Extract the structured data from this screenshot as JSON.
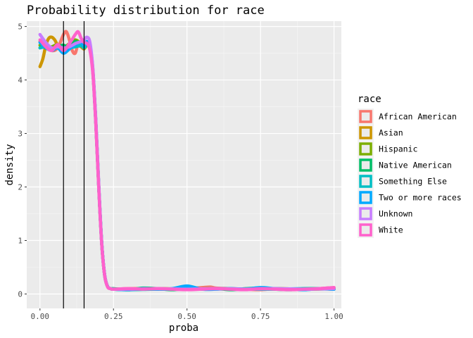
{
  "chart_data": {
    "type": "line",
    "title": "Probability distribution for race",
    "xlabel": "proba",
    "ylabel": "density",
    "xlim": [
      -0.045,
      1.025
    ],
    "ylim": [
      -0.27,
      5.1
    ],
    "x_ticks": [
      0.0,
      0.25,
      0.5,
      0.75,
      1.0
    ],
    "x_tick_labels": [
      "0.00",
      "0.25",
      "0.50",
      "0.75",
      "1.00"
    ],
    "y_ticks": [
      0,
      1,
      2,
      3,
      4,
      5
    ],
    "y_tick_labels": [
      "0",
      "1",
      "2",
      "3",
      "4",
      "5"
    ],
    "vlines": [
      0.08,
      0.15
    ],
    "grid": true,
    "legend": {
      "title": "race",
      "position": "right"
    },
    "series": [
      {
        "name": "African American",
        "color": "#F8766D",
        "x": [
          0.0,
          0.02,
          0.04,
          0.06,
          0.08,
          0.09,
          0.1,
          0.11,
          0.12,
          0.13,
          0.14,
          0.15,
          0.16,
          0.17,
          0.18,
          0.19,
          0.2,
          0.21,
          0.22,
          0.23,
          0.24,
          0.25,
          0.3,
          0.35,
          0.4,
          0.45,
          0.5,
          0.55,
          0.58,
          0.6,
          0.65,
          0.7,
          0.75,
          0.8,
          0.85,
          0.9,
          0.95,
          1.0
        ],
        "y": [
          4.72,
          4.65,
          4.55,
          4.6,
          4.85,
          4.9,
          4.75,
          4.55,
          4.5,
          4.68,
          4.62,
          4.6,
          4.68,
          4.62,
          4.2,
          3.2,
          2.0,
          0.95,
          0.35,
          0.14,
          0.1,
          0.09,
          0.1,
          0.1,
          0.09,
          0.09,
          0.1,
          0.12,
          0.13,
          0.11,
          0.1,
          0.09,
          0.08,
          0.1,
          0.09,
          0.09,
          0.1,
          0.12
        ]
      },
      {
        "name": "Asian",
        "color": "#CD9600",
        "x": [
          0.0,
          0.01,
          0.02,
          0.03,
          0.04,
          0.05,
          0.06,
          0.07,
          0.08,
          0.1,
          0.12,
          0.14,
          0.15,
          0.16,
          0.17,
          0.18,
          0.19,
          0.2,
          0.21,
          0.22,
          0.23,
          0.24,
          0.25,
          0.3,
          0.4,
          0.5,
          0.6,
          0.7,
          0.8,
          0.9,
          1.0
        ],
        "y": [
          4.25,
          4.4,
          4.65,
          4.78,
          4.8,
          4.75,
          4.65,
          4.62,
          4.6,
          4.62,
          4.68,
          4.62,
          4.58,
          4.65,
          4.58,
          4.15,
          3.2,
          2.0,
          0.95,
          0.35,
          0.14,
          0.1,
          0.09,
          0.08,
          0.1,
          0.09,
          0.1,
          0.09,
          0.1,
          0.09,
          0.1
        ]
      },
      {
        "name": "Hispanic",
        "color": "#7CAE00",
        "x": [
          0.0,
          0.02,
          0.04,
          0.06,
          0.08,
          0.1,
          0.12,
          0.14,
          0.15,
          0.16,
          0.17,
          0.18,
          0.19,
          0.2,
          0.21,
          0.22,
          0.23,
          0.24,
          0.25,
          0.3,
          0.4,
          0.5,
          0.6,
          0.7,
          0.8,
          0.9,
          1.0
        ],
        "y": [
          4.65,
          4.6,
          4.62,
          4.66,
          4.6,
          4.68,
          4.75,
          4.68,
          4.6,
          4.66,
          4.6,
          4.15,
          3.2,
          2.0,
          0.95,
          0.35,
          0.14,
          0.1,
          0.09,
          0.09,
          0.1,
          0.09,
          0.1,
          0.09,
          0.1,
          0.09,
          0.1
        ]
      },
      {
        "name": "Native American",
        "color": "#00BE67",
        "x": [
          0.0,
          0.02,
          0.04,
          0.06,
          0.08,
          0.1,
          0.12,
          0.14,
          0.15,
          0.16,
          0.17,
          0.18,
          0.19,
          0.2,
          0.21,
          0.22,
          0.23,
          0.24,
          0.25,
          0.3,
          0.35,
          0.4,
          0.45,
          0.5,
          0.55,
          0.6,
          0.65,
          0.7,
          0.75,
          0.8,
          0.85,
          0.9,
          0.95,
          1.0
        ],
        "y": [
          4.6,
          4.65,
          4.6,
          4.62,
          4.65,
          4.6,
          4.72,
          4.65,
          4.6,
          4.66,
          4.6,
          4.15,
          3.2,
          2.0,
          0.95,
          0.35,
          0.14,
          0.1,
          0.1,
          0.08,
          0.11,
          0.1,
          0.08,
          0.1,
          0.09,
          0.1,
          0.08,
          0.1,
          0.11,
          0.09,
          0.08,
          0.1,
          0.1,
          0.09
        ]
      },
      {
        "name": "Something Else",
        "color": "#00BFC4",
        "x": [
          0.0,
          0.02,
          0.04,
          0.06,
          0.08,
          0.1,
          0.12,
          0.14,
          0.15,
          0.16,
          0.17,
          0.18,
          0.19,
          0.2,
          0.21,
          0.22,
          0.23,
          0.24,
          0.25,
          0.3,
          0.4,
          0.5,
          0.6,
          0.7,
          0.8,
          0.9,
          1.0
        ],
        "y": [
          4.6,
          4.62,
          4.58,
          4.6,
          4.58,
          4.6,
          4.62,
          4.64,
          4.6,
          4.66,
          4.6,
          4.15,
          3.2,
          2.0,
          0.95,
          0.35,
          0.14,
          0.1,
          0.09,
          0.08,
          0.09,
          0.09,
          0.1,
          0.09,
          0.09,
          0.1,
          0.09
        ]
      },
      {
        "name": "Two or more races",
        "color": "#00A9FF",
        "x": [
          0.0,
          0.02,
          0.04,
          0.06,
          0.08,
          0.1,
          0.12,
          0.14,
          0.15,
          0.16,
          0.17,
          0.18,
          0.19,
          0.2,
          0.21,
          0.22,
          0.23,
          0.24,
          0.25,
          0.3,
          0.35,
          0.4,
          0.45,
          0.5,
          0.55,
          0.6,
          0.65,
          0.7,
          0.75,
          0.8,
          0.85,
          0.9,
          0.95,
          1.0
        ],
        "y": [
          4.7,
          4.6,
          4.55,
          4.6,
          4.5,
          4.58,
          4.66,
          4.7,
          4.65,
          4.72,
          4.62,
          4.15,
          3.2,
          2.0,
          0.95,
          0.35,
          0.14,
          0.1,
          0.09,
          0.08,
          0.1,
          0.09,
          0.1,
          0.15,
          0.09,
          0.09,
          0.1,
          0.09,
          0.12,
          0.1,
          0.09,
          0.08,
          0.1,
          0.09
        ]
      },
      {
        "name": "Unknown",
        "color": "#C77CFF",
        "x": [
          0.0,
          0.02,
          0.04,
          0.06,
          0.08,
          0.1,
          0.12,
          0.14,
          0.15,
          0.16,
          0.17,
          0.18,
          0.19,
          0.2,
          0.21,
          0.22,
          0.23,
          0.24,
          0.25,
          0.3,
          0.4,
          0.5,
          0.6,
          0.7,
          0.8,
          0.9,
          1.0
        ],
        "y": [
          4.85,
          4.7,
          4.6,
          4.62,
          4.6,
          4.62,
          4.68,
          4.72,
          4.75,
          4.8,
          4.7,
          4.2,
          3.25,
          2.05,
          0.97,
          0.36,
          0.14,
          0.1,
          0.09,
          0.09,
          0.1,
          0.09,
          0.1,
          0.09,
          0.1,
          0.09,
          0.1
        ]
      },
      {
        "name": "White",
        "color": "#FF61CC",
        "x": [
          0.0,
          0.02,
          0.04,
          0.06,
          0.08,
          0.1,
          0.12,
          0.13,
          0.14,
          0.15,
          0.16,
          0.17,
          0.18,
          0.19,
          0.2,
          0.21,
          0.22,
          0.23,
          0.24,
          0.25,
          0.3,
          0.35,
          0.4,
          0.45,
          0.5,
          0.55,
          0.6,
          0.65,
          0.7,
          0.75,
          0.8,
          0.85,
          0.9,
          0.95,
          1.0
        ],
        "y": [
          4.75,
          4.62,
          4.55,
          4.66,
          4.55,
          4.68,
          4.85,
          4.9,
          4.78,
          4.7,
          4.68,
          4.55,
          4.1,
          3.15,
          1.95,
          0.92,
          0.34,
          0.13,
          0.1,
          0.09,
          0.1,
          0.09,
          0.1,
          0.09,
          0.08,
          0.09,
          0.1,
          0.09,
          0.08,
          0.1,
          0.09,
          0.08,
          0.09,
          0.1,
          0.12
        ]
      }
    ]
  }
}
